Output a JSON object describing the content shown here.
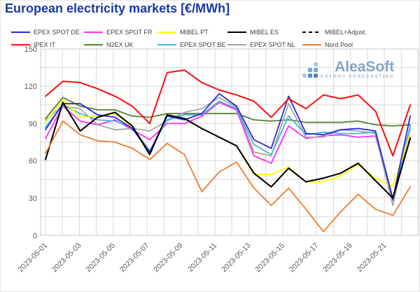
{
  "title": "European electricity markets [€/MWh]",
  "watermark": {
    "name": "AleaSoft",
    "tagline": "ENERGY FORECASTING"
  },
  "axes": {
    "y_tick_labels": [
      "0",
      "30",
      "60",
      "90",
      "120",
      "150"
    ],
    "x_tick_label_step": 2,
    "colors": {
      "grid": "#d9d9d9",
      "border": "#c8c8c8",
      "tick_text": "#595959"
    }
  },
  "chart_data": {
    "type": "line",
    "title": "European electricity markets [€/MWh]",
    "xlabel": "",
    "ylabel": "",
    "ylim": [
      0,
      150
    ],
    "y_major": 30,
    "y_minor": 15,
    "grid": true,
    "legend_position": "top",
    "x": [
      "2023-05-01",
      "2023-05-02",
      "2023-05-03",
      "2023-05-04",
      "2023-05-05",
      "2023-05-06",
      "2023-05-07",
      "2023-05-08",
      "2023-05-09",
      "2023-05-10",
      "2023-05-11",
      "2023-05-12",
      "2023-05-13",
      "2023-05-14",
      "2023-05-15",
      "2023-05-16",
      "2023-05-17",
      "2023-05-18",
      "2023-05-19",
      "2023-05-20",
      "2023-05-21",
      "2023-05-22"
    ],
    "series": [
      {
        "name": "EPEX SPOT DE",
        "color": "#2828dc",
        "dash": "none",
        "values": [
          85,
          106,
          106,
          97,
          95,
          86,
          67,
          96,
          93,
          98,
          114,
          104,
          77,
          70,
          112,
          82,
          81,
          85,
          86,
          84,
          29,
          96
        ]
      },
      {
        "name": "EPEX SPOT FR",
        "color": "#ff2bff",
        "dash": "none",
        "values": [
          78,
          104,
          92,
          89,
          93,
          85,
          77,
          90,
          90,
          96,
          107,
          101,
          64,
          58,
          88,
          78,
          80,
          81,
          79,
          80,
          28,
          79
        ]
      },
      {
        "name": "MIBEL PT",
        "color": "#ffff00",
        "dash": "none",
        "values": [
          91,
          109,
          95,
          96,
          98,
          87,
          65,
          97,
          94,
          86,
          79,
          72,
          49,
          49,
          55,
          43,
          43,
          48,
          57,
          46,
          39,
          82
        ]
      },
      {
        "name": "MIBEL ES",
        "color": "#000000",
        "dash": "none",
        "values": [
          61,
          107,
          84,
          95,
          99,
          88,
          65,
          97,
          94,
          86,
          79,
          72,
          50,
          39,
          54,
          43,
          46,
          50,
          58,
          44,
          30,
          78
        ]
      },
      {
        "name": "MIBEL+Adjust.",
        "color": "#000000",
        "dash": "dashed",
        "values": [
          61,
          107,
          84,
          95,
          99,
          88,
          65,
          97,
          94,
          86,
          79,
          72,
          50,
          39,
          54,
          43,
          46,
          50,
          58,
          44,
          30,
          78
        ]
      },
      {
        "name": "IPEX IT",
        "color": "#fb0d0d",
        "dash": "none",
        "values": [
          112,
          124,
          123,
          118,
          112,
          104,
          90,
          131,
          133,
          123,
          117,
          113,
          108,
          95,
          110,
          102,
          113,
          110,
          113,
          100,
          64,
          105
        ]
      },
      {
        "name": "N2EX UK",
        "color": "#548235",
        "dash": "none",
        "values": [
          94,
          111,
          104,
          101,
          101,
          96,
          95,
          98,
          98,
          98,
          98,
          98,
          93,
          92,
          93,
          91,
          91,
          91,
          92,
          89,
          88,
          89
        ]
      },
      {
        "name": "EPEX SPOT BE",
        "color": "#46b4d7",
        "dash": "none",
        "values": [
          87,
          105,
          98,
          93,
          92,
          87,
          68,
          93,
          97,
          97,
          108,
          102,
          73,
          65,
          96,
          81,
          83,
          82,
          82,
          83,
          30,
          88
        ]
      },
      {
        "name": "EPEX SPOT NL",
        "color": "#a6a6a6",
        "dash": "none",
        "values": [
          93,
          104,
          102,
          89,
          85,
          86,
          84,
          92,
          99,
          102,
          111,
          103,
          67,
          64,
          106,
          79,
          79,
          85,
          84,
          82,
          24,
          86
        ]
      },
      {
        "name": "Nord Pool",
        "color": "#ed7d31",
        "dash": "none",
        "values": [
          66,
          92,
          81,
          76,
          75,
          70,
          61,
          74,
          65,
          35,
          51,
          59,
          38,
          24,
          38,
          21,
          3,
          19,
          33,
          21,
          16,
          39
        ]
      }
    ]
  }
}
